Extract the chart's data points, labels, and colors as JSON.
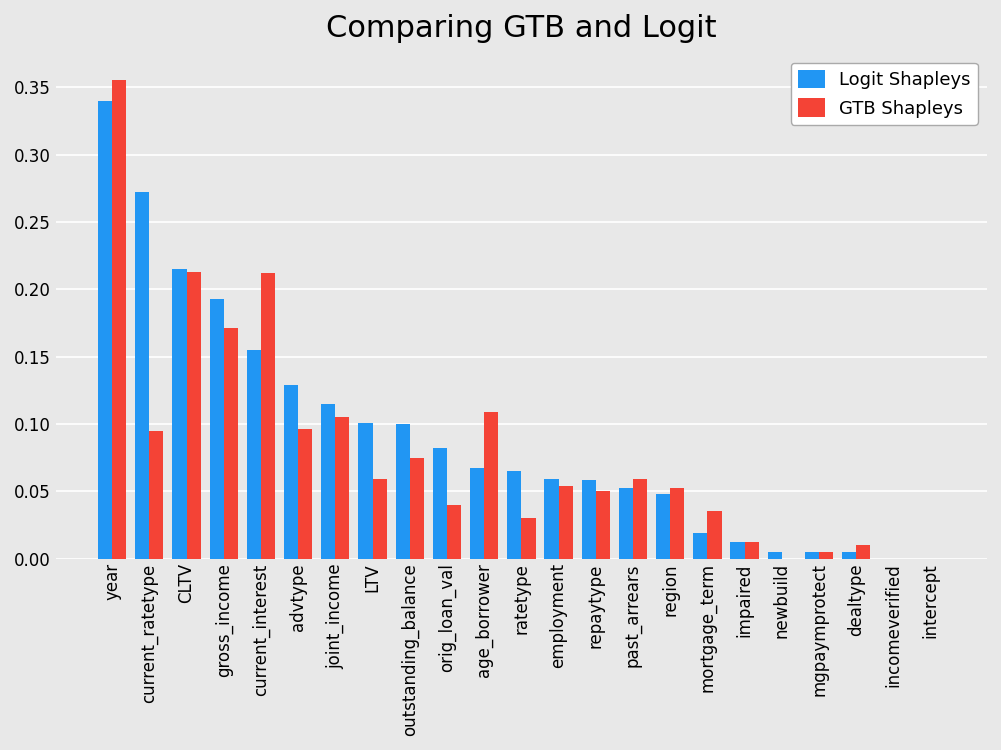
{
  "title": "Comparing GTB and Logit",
  "categories": [
    "year",
    "current_ratetype",
    "CLTV",
    "gross_income",
    "current_interest",
    "advtype",
    "joint_income",
    "LTV",
    "outstanding_balance",
    "orig_loan_val",
    "age_borrower",
    "ratetype",
    "employment",
    "repaytype",
    "past_arrears",
    "region",
    "mortgage_term",
    "impaired",
    "newbuild",
    "mgpaymprotect",
    "dealtype",
    "incomeverified",
    "intercept"
  ],
  "logit_values": [
    0.34,
    0.272,
    0.215,
    0.193,
    0.155,
    0.129,
    0.115,
    0.101,
    0.1,
    0.082,
    0.067,
    0.065,
    0.059,
    0.058,
    0.052,
    0.048,
    0.019,
    0.012,
    0.005,
    0.005,
    0.005,
    0.0,
    0.0
  ],
  "gtb_values": [
    0.355,
    0.095,
    0.213,
    0.171,
    0.212,
    0.096,
    0.105,
    0.059,
    0.075,
    0.04,
    0.109,
    0.03,
    0.054,
    0.05,
    0.059,
    0.052,
    0.035,
    0.012,
    0.0,
    0.005,
    0.01,
    0.0,
    0.0
  ],
  "logit_color": "#2196F3",
  "gtb_color": "#F44336",
  "background_color": "#e8e8e8",
  "grid_color": "#ffffff",
  "ylim": [
    0,
    0.375
  ],
  "yticks": [
    0.0,
    0.05,
    0.1,
    0.15,
    0.2,
    0.25,
    0.3,
    0.35
  ],
  "bar_width": 0.38,
  "legend_labels": [
    "Logit Shapleys",
    "GTB Shapleys"
  ],
  "title_fontsize": 22,
  "tick_fontsize": 12,
  "legend_fontsize": 13
}
